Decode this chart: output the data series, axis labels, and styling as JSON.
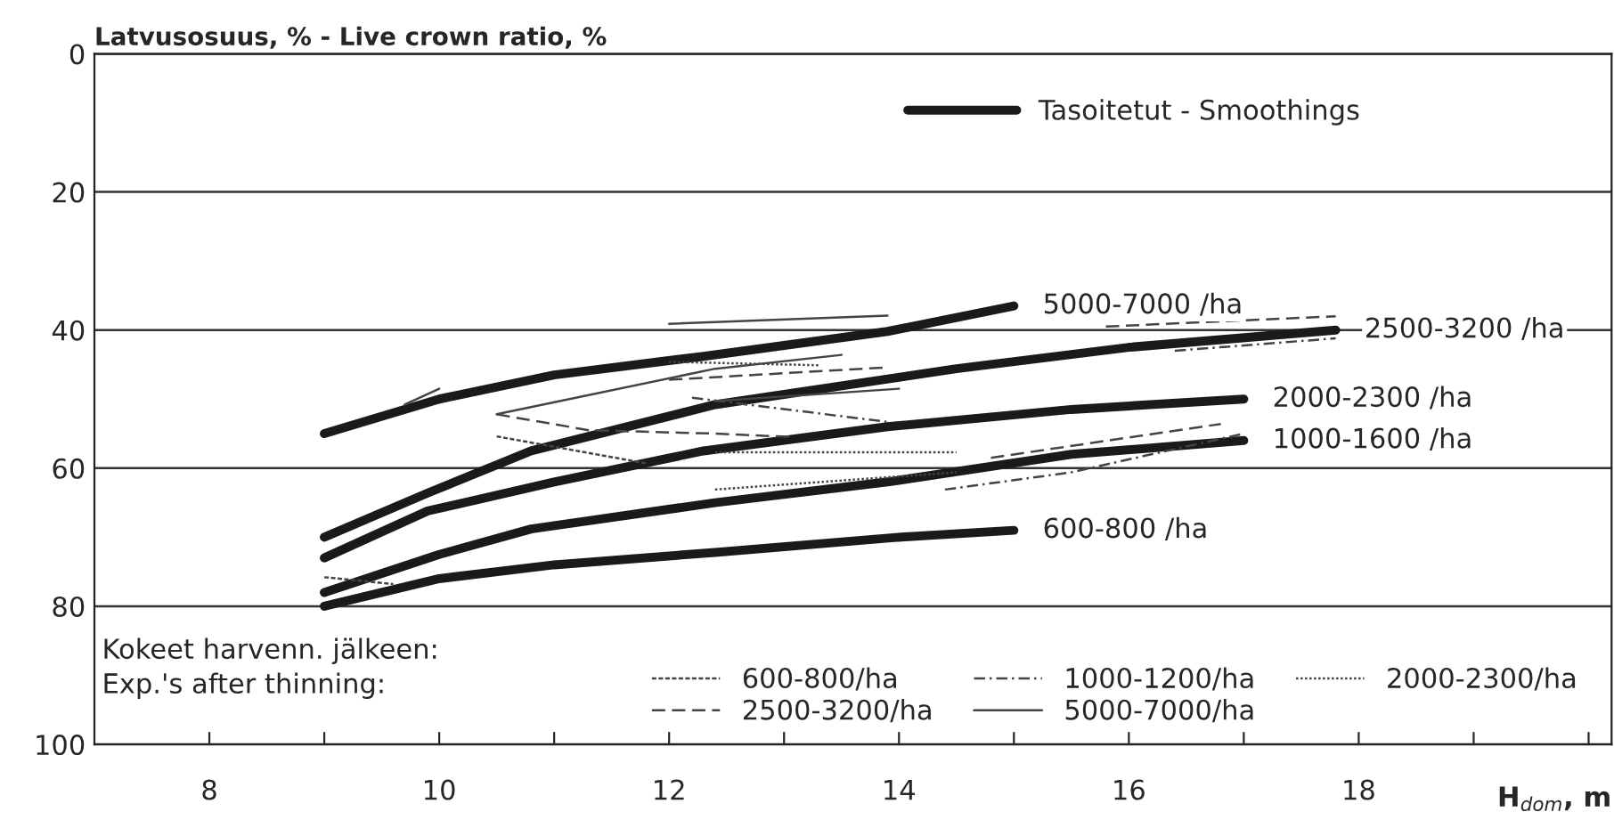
{
  "chart_data": {
    "type": "line",
    "ylabel": "Latvusosuus, % - Live crown ratio, %",
    "xlabel": "H$_{dom}$, m",
    "legend_title": "Kokeet harvenn. jälkeen:\nExp.'s after thinning:",
    "annotations": [
      "Tasoitetut - Smoothings"
    ],
    "xlim": [
      7,
      20.2
    ],
    "ylim": [
      100,
      0
    ],
    "xticks": [
      8,
      {
        "value": 9,
        "label": null
      },
      10,
      {
        "value": 11,
        "label": null
      },
      12,
      {
        "value": 13,
        "label": null
      },
      14,
      {
        "value": 15,
        "label": null
      },
      16,
      {
        "value": 17,
        "label": null
      },
      18,
      {
        "value": 19,
        "label": null
      },
      {
        "value": 20,
        "label": null
      }
    ],
    "yticks": [
      0,
      20,
      40,
      60,
      80,
      100
    ],
    "grid": "y",
    "legend": "bottom",
    "series": [
      {
        "name": "5000-7000 /ha",
        "color": "#1a1a1a",
        "line_style": "solid",
        "x": [
          9,
          10,
          11,
          12.3,
          13.9,
          15
        ],
        "values": [
          55,
          50,
          46.5,
          43.8,
          40.2,
          36.5
        ]
      },
      {
        "name": "2500-3200 /ha",
        "color": "#1a1a1a",
        "line_style": "solid",
        "x": [
          9,
          9.9,
          10.8,
          12.4,
          14.5,
          16,
          17.8
        ],
        "values": [
          70,
          63.6,
          57.5,
          50.8,
          45.6,
          42.5,
          40
        ]
      },
      {
        "name": "2000-2300 /ha",
        "color": "#1a1a1a",
        "line_style": "solid",
        "x": [
          9,
          9.9,
          11,
          12.3,
          13.9,
          15.5,
          17
        ],
        "values": [
          73,
          66.2,
          62,
          57.5,
          54,
          51.5,
          50
        ]
      },
      {
        "name": "1000-1600 /ha",
        "color": "#1a1a1a",
        "line_style": "solid",
        "x": [
          9,
          10,
          10.8,
          12.4,
          13.9,
          15.5,
          17
        ],
        "values": [
          78,
          72.5,
          68.8,
          65,
          62,
          58,
          56
        ]
      },
      {
        "name": "600-800 /ha",
        "color": "#1a1a1a",
        "line_style": "solid",
        "x": [
          9,
          10,
          11,
          12.4,
          14,
          15
        ],
        "values": [
          80,
          76,
          74,
          72.2,
          70,
          69
        ]
      },
      {
        "name": "600-800/ha",
        "color": "#444444",
        "line_style": "densely dashed",
        "x": [
          9,
          9.6
        ],
        "values": [
          75.8,
          76.8
        ]
      },
      {
        "color": "#444444",
        "line_style": "densely dashed",
        "x": [
          10.5,
          11.8
        ],
        "values": [
          55.4,
          59.3
        ]
      },
      {
        "name": "1000-1200/ha",
        "color": "#444444",
        "line_style": "dashdot",
        "x": [
          14.4,
          15.5,
          17
        ],
        "values": [
          63.1,
          60.6,
          55
        ]
      },
      {
        "color": "#444444",
        "line_style": "dashdot",
        "x": [
          12.2,
          13.9
        ],
        "values": [
          49.8,
          53.3
        ]
      },
      {
        "color": "#444444",
        "line_style": "dashdot",
        "x": [
          16.4,
          17.8
        ],
        "values": [
          43,
          41.2
        ]
      },
      {
        "name": "2000-2300/ha",
        "color": "#444444",
        "line_style": "dotted",
        "x": [
          12.4,
          14.5
        ],
        "values": [
          57.7,
          57.7
        ]
      },
      {
        "color": "#444444",
        "line_style": "dotted",
        "x": [
          12.4,
          14.5
        ],
        "values": [
          63.1,
          60.6
        ]
      },
      {
        "color": "#444444",
        "line_style": "dotted",
        "x": [
          12,
          13.3
        ],
        "values": [
          44.6,
          45.1
        ]
      },
      {
        "name": "2500-3200/ha",
        "color": "#444444",
        "line_style": "dashed",
        "x": [
          10.5,
          11.3,
          12.4,
          13.1
        ],
        "values": [
          52.2,
          54.5,
          55,
          55.5
        ]
      },
      {
        "color": "#444444",
        "line_style": "dashed",
        "x": [
          12,
          13.9
        ],
        "values": [
          47.2,
          45.4
        ]
      },
      {
        "color": "#444444",
        "line_style": "dashed",
        "x": [
          14.8,
          16.8
        ],
        "values": [
          58.5,
          53.6
        ]
      },
      {
        "color": "#444444",
        "line_style": "dashed",
        "x": [
          15.8,
          17.8
        ],
        "values": [
          39.5,
          38
        ]
      },
      {
        "name": "5000-7000/ha",
        "color": "#444444",
        "line_style": "solid",
        "x": [
          12,
          13.9
        ],
        "values": [
          39.1,
          37.9
        ]
      },
      {
        "color": "#444444",
        "line_style": "solid",
        "x": [
          9.7,
          10
        ],
        "values": [
          50.8,
          48.5
        ]
      },
      {
        "color": "#444444",
        "line_style": "solid",
        "x": [
          10.5,
          12.4,
          13.5
        ],
        "values": [
          52.2,
          45.6,
          43.6
        ]
      },
      {
        "color": "#444444",
        "line_style": "solid",
        "x": [
          12.4,
          14
        ],
        "values": [
          50.3,
          48.5
        ]
      }
    ]
  }
}
